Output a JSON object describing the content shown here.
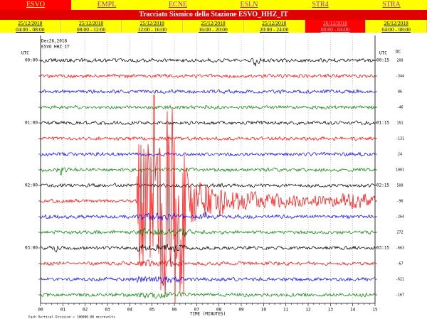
{
  "station_tabs": [
    "ESVO",
    "EMPL",
    "ECNE",
    "ESLN",
    "STR4",
    "STRA"
  ],
  "title": "Tracciato Sismico della Stazione ESVO_HHZ_IT",
  "time_tabs": [
    {
      "date": "25/12/2018",
      "range": "04:00 - 08:00"
    },
    {
      "date": "25/12/2018",
      "range": "08:00 - 12:00"
    },
    {
      "date": "25/12/2018",
      "range": "12:00 - 16:00"
    },
    {
      "date": "25/12/2018",
      "range": "16:00 - 20:00"
    },
    {
      "date": "25/12/2018",
      "range": "20:00 - 24:00"
    },
    {
      "date": "26/12/2018",
      "range": "00:00 - 04:00"
    },
    {
      "date": "26/12/2018",
      "range": "04:00 - 08:00"
    }
  ],
  "seismogram": {
    "date": "Dec26,2018",
    "station": "ESVO HHZ IT",
    "utc_left": "UTC",
    "utc_right": "UTC",
    "dc_header": "DC",
    "left_times": [
      "00:00",
      "01:00",
      "02:00",
      "03:00"
    ],
    "right_times": [
      "00:15",
      "01:15",
      "02:15",
      "03:15"
    ],
    "dc_values": [
      209,
      -344,
      86,
      -46,
      151,
      -131,
      24,
      1001,
      509,
      -96,
      -264,
      272,
      -663,
      -67,
      -621,
      -167
    ],
    "x_labels": [
      "00",
      "01",
      "02",
      "03",
      "04",
      "05",
      "06",
      "07",
      "08",
      "09",
      "10",
      "11",
      "12",
      "13",
      "14",
      "15"
    ],
    "x_axis_label": "TIME (MINUTES)",
    "scale_note": "Each Vertical Division = 100000.00 microvolts"
  }
}
